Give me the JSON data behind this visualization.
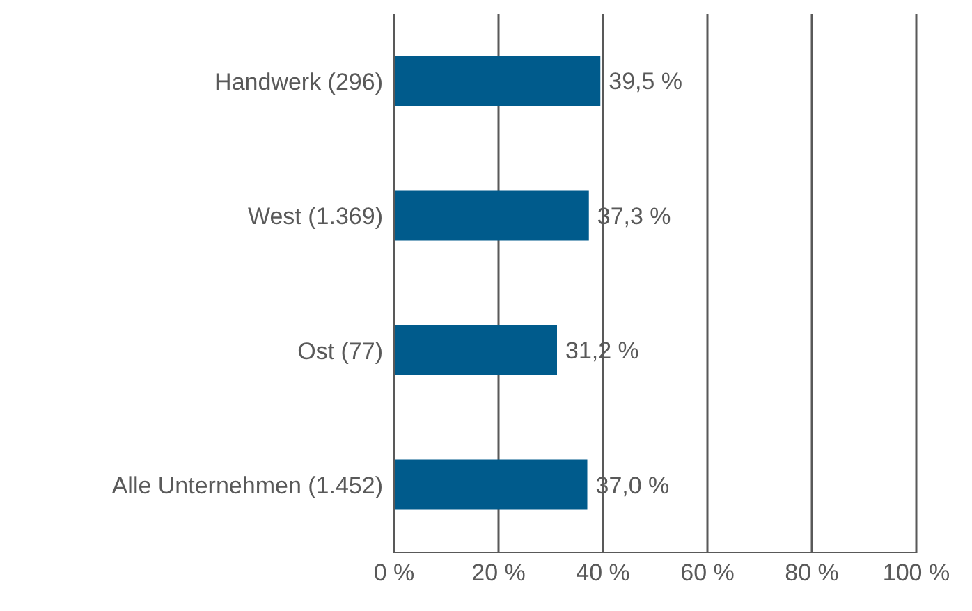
{
  "chart_data": {
    "type": "bar",
    "orientation": "horizontal",
    "categories": [
      "Handwerk (296)",
      "West (1.369)",
      "Ost (77)",
      "Alle Unternehmen (1.452)"
    ],
    "values": [
      39.5,
      37.3,
      31.2,
      37.0
    ],
    "value_labels": [
      "39,5 %",
      "37,3 %",
      "31,2 %",
      "37,0 %"
    ],
    "color": "#005b8c",
    "xlim": [
      0,
      100
    ],
    "xticks": [
      {
        "value": 0,
        "label": "0 %"
      },
      {
        "value": 20,
        "label": "20 %"
      },
      {
        "value": 40,
        "label": "40 %"
      },
      {
        "value": 60,
        "label": "60 %"
      },
      {
        "value": 80,
        "label": "80 %"
      },
      {
        "value": 100,
        "label": "100 %"
      }
    ],
    "grid": "x"
  }
}
